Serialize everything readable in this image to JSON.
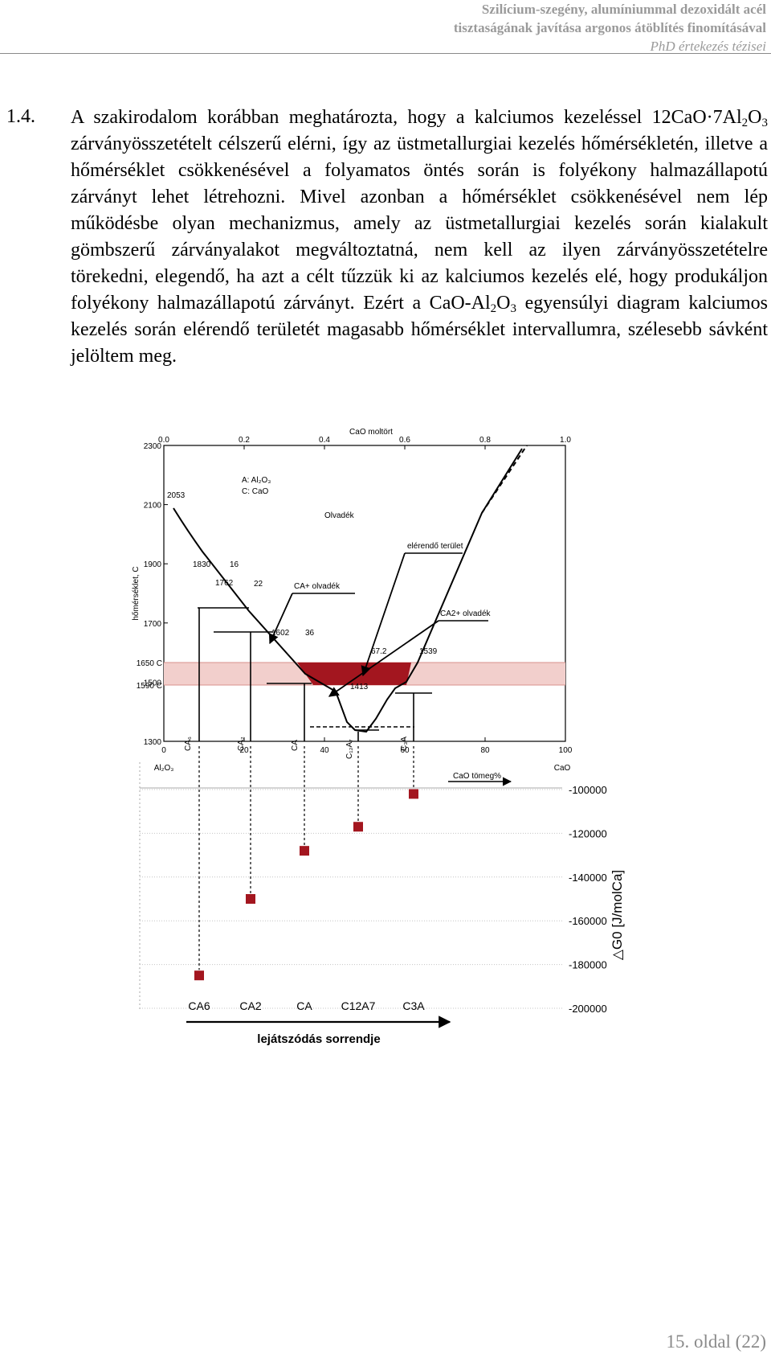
{
  "header": {
    "line1": "Szilícium-szegény, alumíniummal dezoxidált acél",
    "line2": "tisztaságának javítása argonos átöblítés finomításával",
    "line3": "PhD értekezés tézisei"
  },
  "section_number": "1.4.",
  "paragraph": {
    "p1": "A szakirodalom korábban meghatározta, hogy a kalciumos kezeléssel 12CaO·7Al",
    "s1": "2",
    "p2": "O",
    "s2": "3",
    "p3": " zárványösszetételt célszerű elérni, így az üstmetallurgiai kezelés hőmérsékletén, illetve a hőmérséklet csökkenésével a folyamatos öntés során is folyékony halmazállapotú zárványt lehet létrehozni. Mivel azonban a hőmérséklet csökkenésével nem lép működésbe olyan mechanizmus, amely az üstmetallurgiai kezelés során kialakult gömbszerű zárványalakot megváltoztatná, nem kell az ilyen zárványösszetételre törekedni, elegendő, ha azt a célt tűzzük ki az kalciumos kezelés elé, hogy produkáljon folyékony halmazállapotú zárványt. Ezért a CaO-Al",
    "s3": "2",
    "p4": "O",
    "s4": "3",
    "p5": " egyensúlyi diagram kalciumos kezelés során elérendő területét magasabb hőmérséklet intervallumra, szélesebb sávként jelöltem meg."
  },
  "phase_diagram": {
    "top_axis_title": "CaO moltört",
    "top_ticks": [
      "0.0",
      "0.2",
      "0.4",
      "0.6",
      "0.8",
      "1.0"
    ],
    "left_ticks": [
      "2300",
      "2100",
      "1900",
      "1700",
      "1500",
      "1300"
    ],
    "band_ticks": [
      "1650 C",
      "1590 C"
    ],
    "ylabel": "hőmérséklet, C",
    "bottom_ticks": [
      "0",
      "20",
      "40",
      "60",
      "80",
      "100"
    ],
    "al2o3_label": "Al₂O₃",
    "cao_label": "CaO",
    "bottom_axis_title": "CaO tömeg%",
    "legend_a": "A: Al₂O₃",
    "legend_c": "C: CaO",
    "melt_label": "Olvadék",
    "target_label": "elérendő terület",
    "ca_melt_label": "CA+ olvadék",
    "ca2_melt_label": "CA2+ olvadék",
    "point_labels": [
      "2053",
      "1830",
      "16",
      "1762",
      "22",
      "1602",
      "36",
      "67.2",
      "1539",
      "1413"
    ],
    "phase_labels": [
      "CA₆",
      "CA₂",
      "CA",
      "C₁₂A₇",
      "C₃A"
    ],
    "band_color": "#f2cfcc",
    "target_color": "#a3161f"
  },
  "chart_data": {
    "type": "scatter",
    "categories": [
      "CA6",
      "CA2",
      "CA",
      "C12A7",
      "C3A"
    ],
    "values": [
      -185000,
      -150000,
      -128000,
      -117000,
      -102000
    ],
    "ylabel": "△G0 [J/molCa]",
    "xlabel": "lejátszódás sorrendje",
    "ylim": [
      -200000,
      -100000
    ],
    "yticks": [
      "-100000",
      "-120000",
      "-140000",
      "-160000",
      "-180000",
      "-200000"
    ],
    "marker_color": "#a3161f"
  },
  "footer": {
    "page": "15. oldal (22)"
  }
}
